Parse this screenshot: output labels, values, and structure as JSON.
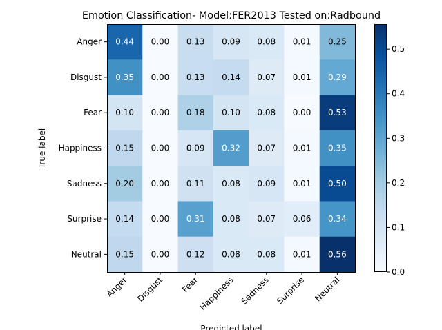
{
  "chart_data": {
    "type": "heatmap",
    "title": "Emotion Classification- Model:FER2013 Tested on:Radbound",
    "xlabel": "Predicted label",
    "ylabel": "True label",
    "rows": [
      "Anger",
      "Disgust",
      "Fear",
      "Happiness",
      "Sadness",
      "Surprise",
      "Neutral"
    ],
    "cols": [
      "Anger",
      "Disgust",
      "Fear",
      "Happiness",
      "Sadness",
      "Surprise",
      "Neutral"
    ],
    "values": [
      [
        0.44,
        0.0,
        0.13,
        0.09,
        0.08,
        0.01,
        0.25
      ],
      [
        0.35,
        0.0,
        0.13,
        0.14,
        0.07,
        0.01,
        0.29
      ],
      [
        0.1,
        0.0,
        0.18,
        0.1,
        0.08,
        0.0,
        0.53
      ],
      [
        0.15,
        0.0,
        0.09,
        0.32,
        0.07,
        0.01,
        0.35
      ],
      [
        0.2,
        0.0,
        0.11,
        0.08,
        0.09,
        0.01,
        0.5
      ],
      [
        0.14,
        0.0,
        0.31,
        0.08,
        0.07,
        0.06,
        0.34
      ],
      [
        0.15,
        0.0,
        0.12,
        0.08,
        0.08,
        0.01,
        0.56
      ]
    ],
    "value_labels": [
      [
        "0.44",
        "0.00",
        "0.13",
        "0.09",
        "0.08",
        "0.01",
        "0.25"
      ],
      [
        "0.35",
        "0.00",
        "0.13",
        "0.14",
        "0.07",
        "0.01",
        "0.29"
      ],
      [
        "0.10",
        "0.00",
        "0.18",
        "0.10",
        "0.08",
        "0.00",
        "0.53"
      ],
      [
        "0.15",
        "0.00",
        "0.09",
        "0.32",
        "0.07",
        "0.01",
        "0.35"
      ],
      [
        "0.20",
        "0.00",
        "0.11",
        "0.08",
        "0.09",
        "0.01",
        "0.50"
      ],
      [
        "0.14",
        "0.00",
        "0.31",
        "0.08",
        "0.07",
        "0.06",
        "0.34"
      ],
      [
        "0.15",
        "0.00",
        "0.12",
        "0.08",
        "0.08",
        "0.01",
        "0.56"
      ]
    ],
    "colormap": "Blues",
    "colormap_stops": [
      "#f7fbff",
      "#deebf7",
      "#c6dbef",
      "#9ecae1",
      "#6baed6",
      "#4292c6",
      "#2171b5",
      "#08519c",
      "#08306b"
    ],
    "colorbar": {
      "vmin": 0.0,
      "vmax": 0.556,
      "ticks": [
        0.0,
        0.1,
        0.2,
        0.3,
        0.4,
        0.5
      ],
      "tick_labels": [
        "0.0",
        "0.1",
        "0.2",
        "0.3",
        "0.4",
        "0.5"
      ]
    },
    "text_threshold": 0.278,
    "text_color_dark_cell": "#ffffff",
    "text_color_light_cell": "#000000",
    "grid": false
  }
}
